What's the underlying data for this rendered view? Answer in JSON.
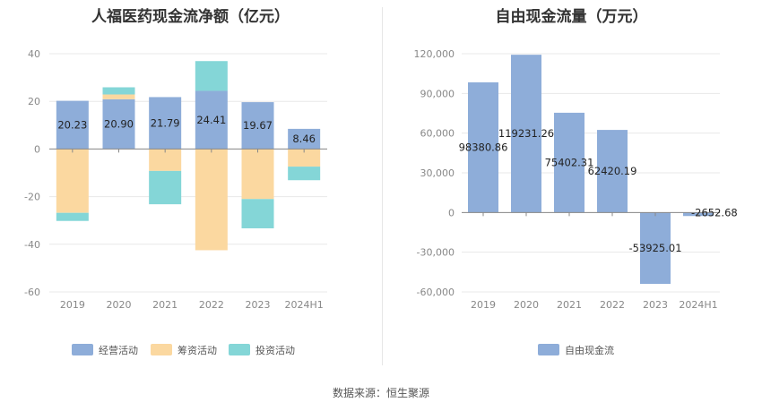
{
  "source_prefix": "数据来源：",
  "source_name": "恒生聚源",
  "colors": {
    "operating": "#8eadd9",
    "financing": "#fbd8a0",
    "investing": "#84d6d7",
    "grid": "#e8e8e8",
    "axis": "#888888"
  },
  "chart_data": [
    {
      "type": "bar",
      "stacked": true,
      "title": "人福医药现金流净额（亿元）",
      "categories": [
        "2019",
        "2020",
        "2021",
        "2022",
        "2023",
        "2024H1"
      ],
      "ylim": [
        -60,
        40
      ],
      "yticks": [
        "40",
        "20",
        "0",
        "-20",
        "-40",
        "-60"
      ],
      "grid": true,
      "legend_position": "bottom",
      "series": [
        {
          "name": "经营活动",
          "color": "#8eadd9",
          "values": [
            20.23,
            20.9,
            21.79,
            24.41,
            19.67,
            8.46
          ]
        },
        {
          "name": "筹资活动",
          "color": "#fbd8a0",
          "values": [
            -26.8,
            2.0,
            -9.2,
            -42.5,
            -21.0,
            -7.4
          ]
        },
        {
          "name": "投资活动",
          "color": "#84d6d7",
          "values": [
            -3.4,
            3.0,
            -14.0,
            12.5,
            -12.3,
            -5.7
          ]
        }
      ],
      "data_labels": [
        "20.23",
        "20.90",
        "21.79",
        "24.41",
        "19.67",
        "8.46"
      ]
    },
    {
      "type": "bar",
      "title": "自由现金流量（万元）",
      "categories": [
        "2019",
        "2020",
        "2021",
        "2022",
        "2023",
        "2024H1"
      ],
      "ylim": [
        -60000,
        120000
      ],
      "yticks": [
        "120,000",
        "90,000",
        "60,000",
        "30,000",
        "0",
        "-30,000",
        "-60,000"
      ],
      "grid": true,
      "legend_position": "bottom",
      "series": [
        {
          "name": "自由现金流",
          "color": "#8eadd9",
          "values": [
            98380.86,
            119231.26,
            75402.31,
            62420.19,
            -53925.01,
            -2652.68
          ]
        }
      ],
      "data_labels": [
        "98380.86",
        "119231.26",
        "75402.31",
        "62420.19",
        "-53925.01",
        "-2652.68"
      ]
    }
  ]
}
